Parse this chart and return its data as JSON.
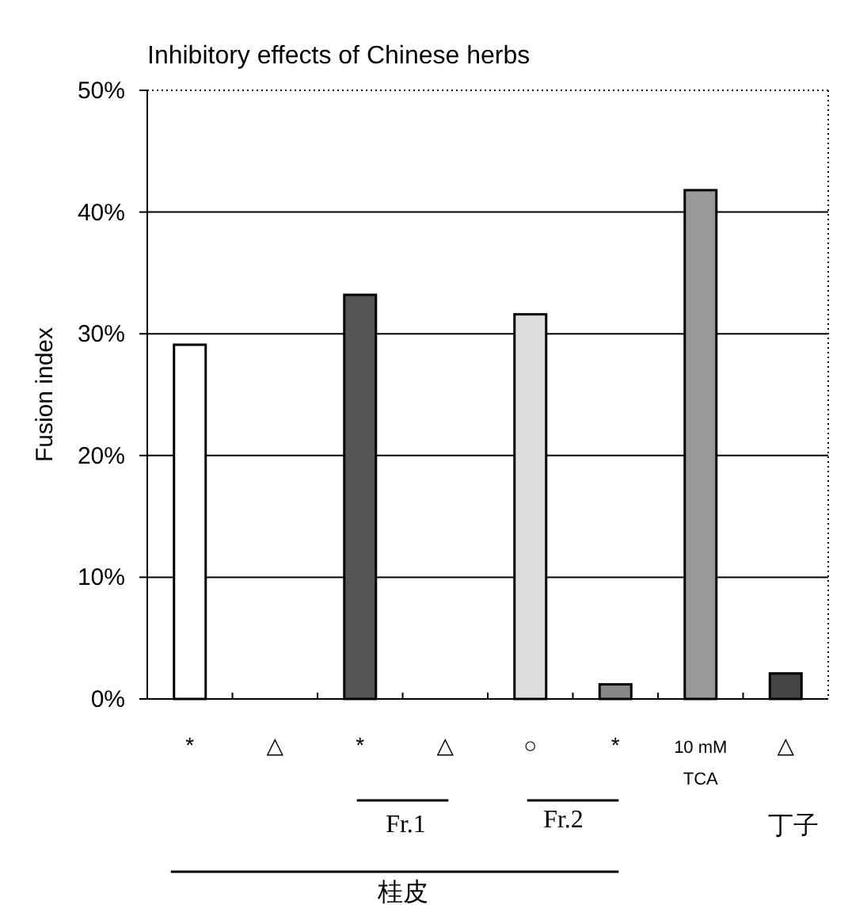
{
  "chart_data": {
    "type": "bar",
    "title": "Inhibitory effects of Chinese herbs",
    "ylabel": "Fusion index",
    "categories": [
      "*",
      "△",
      "*",
      "△",
      "○",
      "*",
      "10 mM\nTCA",
      "△"
    ],
    "values": [
      29.1,
      0,
      33.2,
      0,
      31.6,
      1.2,
      41.8,
      2.1
    ],
    "colors": [
      "#ffffff",
      "#555555",
      "#555555",
      "#555555",
      "#dddddd",
      "#888888",
      "#999999",
      "#444444"
    ],
    "ylim": [
      0,
      50
    ],
    "yticks": [
      {
        "value": 0,
        "label": "0%"
      },
      {
        "value": 10,
        "label": "10%"
      },
      {
        "value": 20,
        "label": "20%"
      },
      {
        "value": 30,
        "label": "30%"
      },
      {
        "value": 40,
        "label": "40%"
      },
      {
        "value": 50,
        "label": "50%"
      }
    ],
    "grid": "y",
    "annotations": [
      "Fr.1",
      "Fr.2",
      "桂皮",
      "丁子"
    ]
  }
}
